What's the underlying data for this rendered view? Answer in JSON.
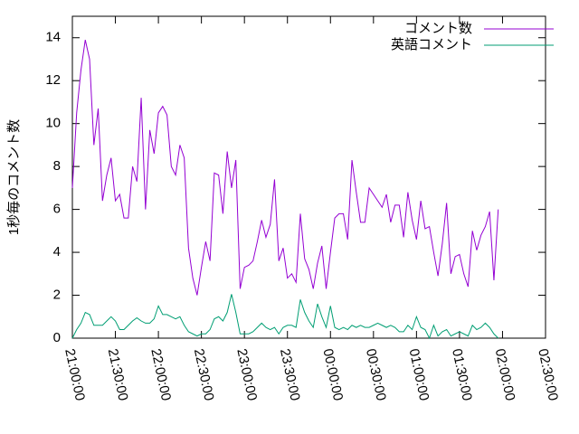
{
  "chart_data": {
    "type": "line",
    "ylabel": "1秒毎のコメント数",
    "x": [
      "21:00:00",
      "21:03:00",
      "21:06:00",
      "21:09:00",
      "21:12:00",
      "21:15:00",
      "21:18:00",
      "21:21:00",
      "21:24:00",
      "21:27:00",
      "21:30:00",
      "21:33:00",
      "21:36:00",
      "21:39:00",
      "21:42:00",
      "21:45:00",
      "21:48:00",
      "21:51:00",
      "21:54:00",
      "21:57:00",
      "22:00:00",
      "22:03:00",
      "22:06:00",
      "22:09:00",
      "22:12:00",
      "22:15:00",
      "22:18:00",
      "22:21:00",
      "22:24:00",
      "22:27:00",
      "22:30:00",
      "22:33:00",
      "22:36:00",
      "22:39:00",
      "22:42:00",
      "22:45:00",
      "22:48:00",
      "22:51:00",
      "22:54:00",
      "22:57:00",
      "23:00:00",
      "23:03:00",
      "23:06:00",
      "23:09:00",
      "23:12:00",
      "23:15:00",
      "23:18:00",
      "23:21:00",
      "23:24:00",
      "23:27:00",
      "23:30:00",
      "23:33:00",
      "23:36:00",
      "23:39:00",
      "23:42:00",
      "23:45:00",
      "23:48:00",
      "23:51:00",
      "23:54:00",
      "23:57:00",
      "00:00:00",
      "00:03:00",
      "00:06:00",
      "00:09:00",
      "00:12:00",
      "00:15:00",
      "00:18:00",
      "00:21:00",
      "00:24:00",
      "00:27:00",
      "00:30:00",
      "00:33:00",
      "00:36:00",
      "00:39:00",
      "00:42:00",
      "00:45:00",
      "00:48:00",
      "00:51:00",
      "00:54:00",
      "00:57:00",
      "01:00:00",
      "01:03:00",
      "01:06:00",
      "01:09:00",
      "01:12:00",
      "01:15:00",
      "01:18:00",
      "01:21:00",
      "01:24:00",
      "01:27:00",
      "01:30:00",
      "01:33:00",
      "01:36:00",
      "01:39:00",
      "01:42:00",
      "01:45:00",
      "01:48:00",
      "01:51:00",
      "01:54:00",
      "01:57:00"
    ],
    "xlim": [
      "21:00:00",
      "02:30:00"
    ],
    "xticks": [
      "21:00:00",
      "21:30:00",
      "22:00:00",
      "22:30:00",
      "23:00:00",
      "23:30:00",
      "00:00:00",
      "00:30:00",
      "01:00:00",
      "01:30:00",
      "02:00:00",
      "02:30:00"
    ],
    "ylim": [
      0,
      15
    ],
    "yticks": [
      0,
      2,
      4,
      6,
      8,
      10,
      12,
      14
    ],
    "legend": "top right",
    "series": [
      {
        "name": "コメント数",
        "color": "#9400d3",
        "values": [
          7,
          10.5,
          12.5,
          13.9,
          13,
          9,
          10.7,
          6.4,
          7.6,
          8.4,
          6.4,
          6.7,
          5.6,
          5.6,
          8,
          7.3,
          11.2,
          6,
          9.7,
          8.6,
          10.5,
          10.8,
          10.4,
          8,
          7.6,
          9,
          8.4,
          4.2,
          2.8,
          2,
          3.3,
          4.5,
          3.6,
          7.7,
          7.6,
          5.8,
          8.7,
          7,
          8.3,
          2.3,
          3.3,
          3.4,
          3.6,
          4.5,
          5.5,
          4.7,
          5.3,
          7.4,
          3.6,
          4.2,
          2.8,
          3,
          2.6,
          5.8,
          3.7,
          3.2,
          2.3,
          3.5,
          4.3,
          2.3,
          4,
          5.6,
          5.8,
          5.8,
          4.6,
          8.3,
          6.8,
          5.4,
          5.4,
          7,
          6.7,
          6.4,
          6.1,
          6.7,
          5.4,
          6.2,
          6.2,
          4.7,
          6.8,
          5.5,
          4.6,
          6.4,
          5.1,
          5.2,
          4,
          2.9,
          4.4,
          6.3,
          3,
          3.8,
          3.9,
          3,
          2.4,
          5,
          4.1,
          4.8,
          5.2,
          5.9,
          2.7,
          6
        ]
      },
      {
        "name": "英語コメント",
        "color": "#009e73",
        "values": [
          0,
          0.4,
          0.7,
          1.2,
          1.1,
          0.6,
          0.6,
          0.6,
          0.8,
          1,
          0.8,
          0.4,
          0.4,
          0.6,
          0.8,
          0.95,
          0.8,
          0.7,
          0.7,
          0.9,
          1.5,
          1.1,
          1.1,
          1,
          0.9,
          1,
          0.6,
          0.3,
          0.2,
          0.1,
          0.2,
          0.2,
          0.4,
          0.9,
          1,
          0.8,
          1.2,
          2.05,
          1.2,
          0.2,
          0.2,
          0.2,
          0.3,
          0.5,
          0.7,
          0.5,
          0.4,
          0.5,
          0.2,
          0.5,
          0.6,
          0.6,
          0.5,
          1.8,
          1.2,
          0.8,
          0.5,
          1.6,
          1,
          0.5,
          1.5,
          0.5,
          0.4,
          0.5,
          0.4,
          0.6,
          0.5,
          0.6,
          0.5,
          0.5,
          0.6,
          0.7,
          0.6,
          0.5,
          0.6,
          0.5,
          0.3,
          0.3,
          0.6,
          0.4,
          1,
          0.5,
          0.4,
          0,
          0.6,
          0.1,
          0.3,
          0.4,
          0.1,
          0.2,
          0.3,
          0.2,
          0.1,
          0.6,
          0.4,
          0.5,
          0.7,
          0.5,
          0.2,
          0
        ]
      }
    ]
  }
}
